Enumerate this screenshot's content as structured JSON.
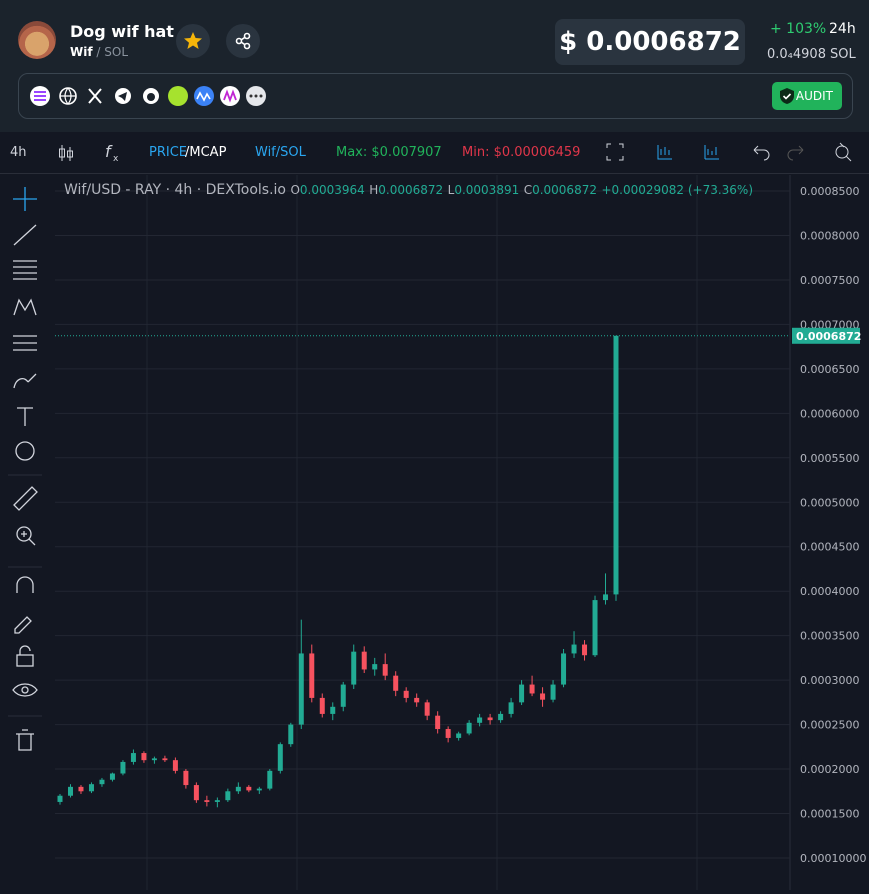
{
  "header": {
    "token_name": "Dog wif hat",
    "symbol": "Wif",
    "pair": "/ SOL",
    "price": "$ 0.0006872",
    "change": "+ 103%",
    "period": "24h",
    "sol_price": "0.0₄4908",
    "sol_unit": "SOL",
    "audit": "AUDIT"
  },
  "toolbar": {
    "interval": "4h",
    "price": "PRICE",
    "mcap": "/MCAP",
    "pair": "Wif/SOL",
    "max": "Max: $0.007907",
    "min": "Min: $0.00006459"
  },
  "chart_data": {
    "type": "candlestick",
    "title": "Wif/USD - RAY · 4h · DEXTools.io",
    "legend": {
      "o_key": "O",
      "o": "0.0003964",
      "h_key": "H",
      "h": "0.0006872",
      "l_key": "L",
      "l": "0.0003891",
      "c_key": "C",
      "c": "0.0006872",
      "change": "+0.00029082 (+73.36%)"
    },
    "open": [
      0.000163,
      0.00017,
      0.00018,
      0.000175,
      0.000183,
      0.000188,
      0.000195,
      0.000208,
      0.000218,
      0.00021,
      0.000212,
      0.00021,
      0.000198,
      0.000182,
      0.000165,
      0.000163,
      0.000165,
      0.000175,
      0.00018,
      0.000176,
      0.000178,
      0.000198,
      0.000228,
      0.00025,
      0.00033,
      0.00028,
      0.000262,
      0.00027,
      0.000295,
      0.000332,
      0.000312,
      0.000318,
      0.000305,
      0.000288,
      0.00028,
      0.000275,
      0.00026,
      0.000245,
      0.000235,
      0.00024,
      0.000252,
      0.000258,
      0.000255,
      0.000262,
      0.000275,
      0.000295,
      0.000285,
      0.000278,
      0.000295,
      0.00033,
      0.00034,
      0.000328,
      0.00039,
      0.0003964
    ],
    "high": [
      0.000172,
      0.000183,
      0.000182,
      0.000185,
      0.00019,
      0.000196,
      0.00021,
      0.000222,
      0.00022,
      0.000214,
      0.000215,
      0.000213,
      0.0002,
      0.000185,
      0.00017,
      0.000168,
      0.000178,
      0.000185,
      0.000182,
      0.00018,
      0.0002,
      0.00023,
      0.000252,
      0.000368,
      0.00034,
      0.000285,
      0.000275,
      0.000298,
      0.00034,
      0.000338,
      0.000325,
      0.00033,
      0.00031,
      0.000292,
      0.000285,
      0.000278,
      0.000265,
      0.000248,
      0.000242,
      0.000255,
      0.000262,
      0.000262,
      0.000265,
      0.00028,
      0.0003,
      0.000305,
      0.000292,
      0.0003,
      0.000335,
      0.000355,
      0.000345,
      0.000395,
      0.00042,
      0.0006872
    ],
    "low": [
      0.00016,
      0.000168,
      0.000172,
      0.000173,
      0.00018,
      0.000186,
      0.000193,
      0.000205,
      0.000207,
      0.000206,
      0.000208,
      0.000195,
      0.000178,
      0.000162,
      0.000158,
      0.000157,
      0.000163,
      0.000172,
      0.000174,
      0.000172,
      0.000176,
      0.000195,
      0.000225,
      0.000245,
      0.000275,
      0.000258,
      0.000255,
      0.000265,
      0.00029,
      0.000308,
      0.000305,
      0.0003,
      0.000282,
      0.000275,
      0.00027,
      0.000255,
      0.00024,
      0.00023,
      0.000232,
      0.000238,
      0.000248,
      0.00025,
      0.000252,
      0.000258,
      0.000272,
      0.000282,
      0.00027,
      0.000275,
      0.000292,
      0.000325,
      0.000322,
      0.000326,
      0.000385,
      0.0003891
    ],
    "close": [
      0.00017,
      0.00018,
      0.000175,
      0.000183,
      0.000188,
      0.000195,
      0.000208,
      0.000218,
      0.00021,
      0.000212,
      0.00021,
      0.000198,
      0.000182,
      0.000165,
      0.000163,
      0.000165,
      0.000175,
      0.00018,
      0.000176,
      0.000178,
      0.000198,
      0.000228,
      0.00025,
      0.00033,
      0.00028,
      0.000262,
      0.00027,
      0.000295,
      0.000332,
      0.000312,
      0.000318,
      0.000305,
      0.000288,
      0.00028,
      0.000275,
      0.00026,
      0.000245,
      0.000235,
      0.00024,
      0.000252,
      0.000258,
      0.000255,
      0.000262,
      0.000275,
      0.000295,
      0.000285,
      0.000278,
      0.000295,
      0.00033,
      0.00034,
      0.000328,
      0.00039,
      0.0003964,
      0.0006872
    ],
    "up_color": "#22ab94",
    "down_color": "#f7525f",
    "price_line": {
      "value": 0.0006872,
      "label": "0.0006872"
    },
    "ylim": [
      6.4e-05,
      0.000868
    ],
    "yticks": [
      {
        "value": 0.00085,
        "label": "0.0008500"
      },
      {
        "value": 0.0008,
        "label": "0.0008000"
      },
      {
        "value": 0.00075,
        "label": "0.0007500"
      },
      {
        "value": 0.0007,
        "label": "0.0007000"
      },
      {
        "value": 0.00065,
        "label": "0.0006500"
      },
      {
        "value": 0.0006,
        "label": "0.0006000"
      },
      {
        "value": 0.00055,
        "label": "0.0005500"
      },
      {
        "value": 0.0005,
        "label": "0.0005000"
      },
      {
        "value": 0.00045,
        "label": "0.0004500"
      },
      {
        "value": 0.0004,
        "label": "0.0004000"
      },
      {
        "value": 0.00035,
        "label": "0.0003500"
      },
      {
        "value": 0.0003,
        "label": "0.0003000"
      },
      {
        "value": 0.00025,
        "label": "0.0002500"
      },
      {
        "value": 0.0002,
        "label": "0.0002000"
      },
      {
        "value": 0.00015,
        "label": "0.0001500"
      },
      {
        "value": 0.0001,
        "label": "0.00010000"
      }
    ],
    "grid": true
  }
}
